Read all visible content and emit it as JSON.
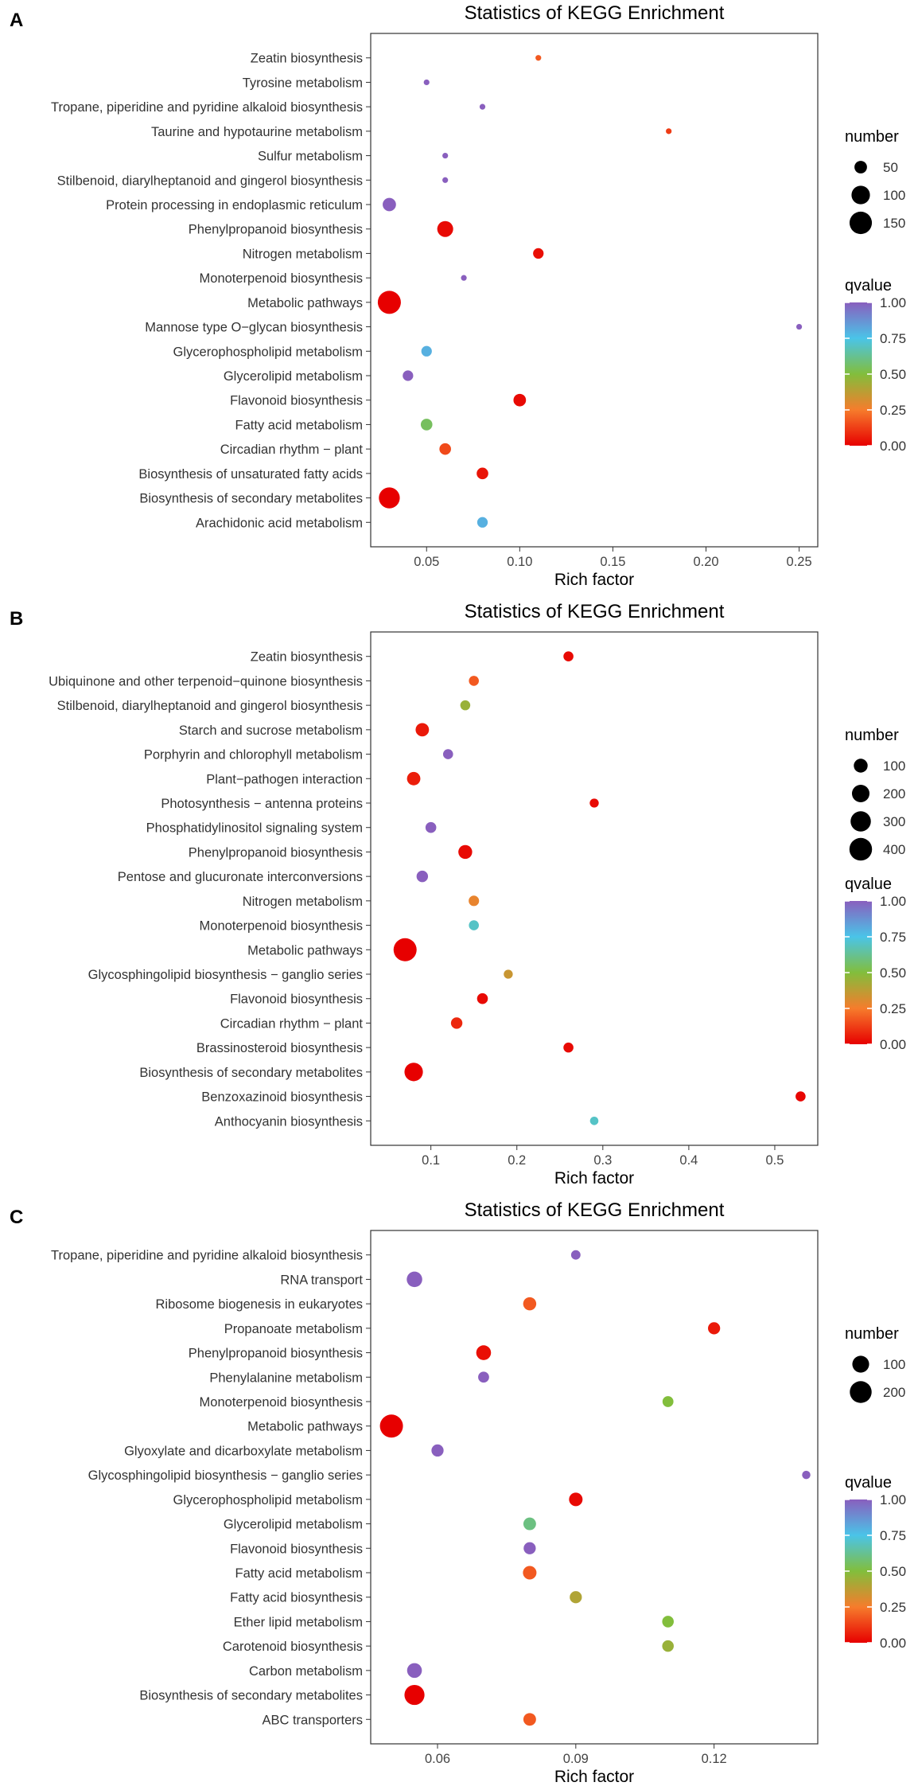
{
  "chart_data": [
    {
      "panel": "A",
      "type": "scatter",
      "title": "Statistics of KEGG Enrichment",
      "xlabel": "Rich factor",
      "ylabel": "",
      "xlim": [
        0.02,
        0.26
      ],
      "xticks": [
        0.05,
        0.1,
        0.15,
        0.2,
        0.25
      ],
      "xtick_labels": [
        "0.05",
        "0.10",
        "0.15",
        "0.20",
        "0.25"
      ],
      "grid": false,
      "legend": {
        "size_title": "number",
        "size_values": [
          50,
          100,
          150
        ],
        "size_labels": [
          "50",
          "100",
          "150"
        ],
        "size_range": [
          30,
          160
        ],
        "color_title": "qvalue",
        "color_ticks": [
          1.0,
          0.75,
          0.5,
          0.25,
          0.0
        ],
        "color_tick_labels": [
          "1.00",
          "0.75",
          "0.50",
          "0.25",
          "0.00"
        ]
      },
      "points": [
        {
          "term": "Zeatin biosynthesis",
          "rich_factor": 0.11,
          "number": 30,
          "qvalue": 0.18
        },
        {
          "term": "Tyrosine metabolism",
          "rich_factor": 0.05,
          "number": 30,
          "qvalue": 1.0
        },
        {
          "term": "Tropane, piperidine and pyridine alkaloid biosynthesis",
          "rich_factor": 0.08,
          "number": 30,
          "qvalue": 1.0
        },
        {
          "term": "Taurine and hypotaurine metabolism",
          "rich_factor": 0.18,
          "number": 30,
          "qvalue": 0.12
        },
        {
          "term": "Sulfur metabolism",
          "rich_factor": 0.06,
          "number": 30,
          "qvalue": 1.0
        },
        {
          "term": "Stilbenoid, diarylheptanoid and gingerol biosynthesis",
          "rich_factor": 0.06,
          "number": 30,
          "qvalue": 1.0
        },
        {
          "term": "Protein processing in endoplasmic reticulum",
          "rich_factor": 0.03,
          "number": 55,
          "qvalue": 1.0
        },
        {
          "term": "Phenylpropanoid biosynthesis",
          "rich_factor": 0.06,
          "number": 75,
          "qvalue": 0.02
        },
        {
          "term": "Nitrogen metabolism",
          "rich_factor": 0.11,
          "number": 40,
          "qvalue": 0.03
        },
        {
          "term": "Monoterpenoid biosynthesis",
          "rich_factor": 0.07,
          "number": 30,
          "qvalue": 1.0
        },
        {
          "term": "Metabolic pathways",
          "rich_factor": 0.03,
          "number": 160,
          "qvalue": 0.0
        },
        {
          "term": "Mannose type O−glycan biosynthesis",
          "rich_factor": 0.25,
          "number": 20,
          "qvalue": 1.0
        },
        {
          "term": "Glycerophospholipid metabolism",
          "rich_factor": 0.05,
          "number": 40,
          "qvalue": 0.8
        },
        {
          "term": "Glycerolipid metabolism",
          "rich_factor": 0.04,
          "number": 40,
          "qvalue": 1.0
        },
        {
          "term": "Flavonoid biosynthesis",
          "rich_factor": 0.1,
          "number": 50,
          "qvalue": 0.02
        },
        {
          "term": "Fatty acid metabolism",
          "rich_factor": 0.05,
          "number": 45,
          "qvalue": 0.55
        },
        {
          "term": "Circadian rhythm − plant",
          "rich_factor": 0.06,
          "number": 45,
          "qvalue": 0.15
        },
        {
          "term": "Biosynthesis of unsaturated fatty acids",
          "rich_factor": 0.08,
          "number": 45,
          "qvalue": 0.04
        },
        {
          "term": "Biosynthesis of secondary metabolites",
          "rich_factor": 0.03,
          "number": 130,
          "qvalue": 0.0
        },
        {
          "term": "Arachidonic acid metabolism",
          "rich_factor": 0.08,
          "number": 40,
          "qvalue": 0.8
        }
      ]
    },
    {
      "panel": "B",
      "type": "scatter",
      "title": "Statistics of KEGG Enrichment",
      "xlabel": "Rich factor",
      "ylabel": "",
      "xlim": [
        0.03,
        0.55
      ],
      "xticks": [
        0.1,
        0.2,
        0.3,
        0.4,
        0.5
      ],
      "xtick_labels": [
        "0.1",
        "0.2",
        "0.3",
        "0.4",
        "0.5"
      ],
      "grid": false,
      "legend": {
        "size_title": "number",
        "size_values": [
          100,
          200,
          300,
          400
        ],
        "size_labels": [
          "100",
          "200",
          "300",
          "400"
        ],
        "size_range": [
          10,
          420
        ],
        "color_title": "qvalue",
        "color_ticks": [
          1.0,
          0.75,
          0.5,
          0.25,
          0.0
        ],
        "color_tick_labels": [
          "1.00",
          "0.75",
          "0.50",
          "0.25",
          "0.00"
        ]
      },
      "points": [
        {
          "term": "Zeatin biosynthesis",
          "rich_factor": 0.26,
          "number": 35,
          "qvalue": 0.02
        },
        {
          "term": "Ubiquinone and other terpenoid−quinone biosynthesis",
          "rich_factor": 0.15,
          "number": 35,
          "qvalue": 0.18
        },
        {
          "term": "Stilbenoid, diarylheptanoid and gingerol biosynthesis",
          "rich_factor": 0.14,
          "number": 35,
          "qvalue": 0.45
        },
        {
          "term": "Starch and sucrose metabolism",
          "rich_factor": 0.09,
          "number": 90,
          "qvalue": 0.05
        },
        {
          "term": "Porphyrin and chlorophyll metabolism",
          "rich_factor": 0.12,
          "number": 35,
          "qvalue": 1.0
        },
        {
          "term": "Plant−pathogen interaction",
          "rich_factor": 0.08,
          "number": 90,
          "qvalue": 0.06
        },
        {
          "term": "Photosynthesis − antenna proteins",
          "rich_factor": 0.29,
          "number": 25,
          "qvalue": 0.02
        },
        {
          "term": "Phosphatidylinositol signaling system",
          "rich_factor": 0.1,
          "number": 45,
          "qvalue": 1.0
        },
        {
          "term": "Phenylpropanoid biosynthesis",
          "rich_factor": 0.14,
          "number": 100,
          "qvalue": 0.02
        },
        {
          "term": "Pentose and glucuronate interconversions",
          "rich_factor": 0.09,
          "number": 55,
          "qvalue": 1.0
        },
        {
          "term": "Nitrogen metabolism",
          "rich_factor": 0.15,
          "number": 40,
          "qvalue": 0.28
        },
        {
          "term": "Monoterpenoid biosynthesis",
          "rich_factor": 0.15,
          "number": 35,
          "qvalue": 0.7
        },
        {
          "term": "Metabolic pathways",
          "rich_factor": 0.07,
          "number": 420,
          "qvalue": 0.0
        },
        {
          "term": "Glycosphingolipid biosynthesis − ganglio series",
          "rich_factor": 0.19,
          "number": 25,
          "qvalue": 0.35
        },
        {
          "term": "Flavonoid biosynthesis",
          "rich_factor": 0.16,
          "number": 45,
          "qvalue": 0.02
        },
        {
          "term": "Circadian rhythm − plant",
          "rich_factor": 0.13,
          "number": 55,
          "qvalue": 0.08
        },
        {
          "term": "Brassinosteroid biosynthesis",
          "rich_factor": 0.26,
          "number": 35,
          "qvalue": 0.02
        },
        {
          "term": "Biosynthesis of secondary metabolites",
          "rich_factor": 0.08,
          "number": 230,
          "qvalue": 0.0
        },
        {
          "term": "Benzoxazinoid biosynthesis",
          "rich_factor": 0.53,
          "number": 35,
          "qvalue": 0.01
        },
        {
          "term": "Anthocyanin biosynthesis",
          "rich_factor": 0.29,
          "number": 20,
          "qvalue": 0.7
        }
      ]
    },
    {
      "panel": "C",
      "type": "scatter",
      "title": "Statistics of KEGG Enrichment",
      "xlabel": "Rich factor",
      "ylabel": "",
      "xlim": [
        0.0455,
        0.1425
      ],
      "xticks": [
        0.06,
        0.09,
        0.12
      ],
      "xtick_labels": [
        "0.06",
        "0.09",
        "0.12"
      ],
      "grid": false,
      "legend": {
        "size_title": "number",
        "size_values": [
          100,
          200
        ],
        "size_labels": [
          "100",
          "200"
        ],
        "size_range": [
          10,
          230
        ],
        "color_title": "qvalue",
        "color_ticks": [
          1.0,
          0.75,
          0.5,
          0.25,
          0.0
        ],
        "color_tick_labels": [
          "1.00",
          "0.75",
          "0.50",
          "0.25",
          "0.00"
        ]
      },
      "points": [
        {
          "term": "Tropane, piperidine and pyridine alkaloid biosynthesis",
          "rich_factor": 0.09,
          "number": 20,
          "qvalue": 1.0
        },
        {
          "term": "RNA transport",
          "rich_factor": 0.055,
          "number": 80,
          "qvalue": 1.0
        },
        {
          "term": "Ribosome biogenesis in eukaryotes",
          "rich_factor": 0.08,
          "number": 50,
          "qvalue": 0.18
        },
        {
          "term": "Propanoate metabolism",
          "rich_factor": 0.12,
          "number": 40,
          "qvalue": 0.05
        },
        {
          "term": "Phenylpropanoid biosynthesis",
          "rich_factor": 0.07,
          "number": 70,
          "qvalue": 0.03
        },
        {
          "term": "Phenylalanine metabolism",
          "rich_factor": 0.07,
          "number": 30,
          "qvalue": 1.0
        },
        {
          "term": "Monoterpenoid biosynthesis",
          "rich_factor": 0.11,
          "number": 30,
          "qvalue": 0.5
        },
        {
          "term": "Metabolic pathways",
          "rich_factor": 0.05,
          "number": 230,
          "qvalue": 0.0
        },
        {
          "term": "Glyoxylate and dicarboxylate metabolism",
          "rich_factor": 0.06,
          "number": 40,
          "qvalue": 1.0
        },
        {
          "term": "Glycosphingolipid biosynthesis − ganglio series",
          "rich_factor": 0.14,
          "number": 15,
          "qvalue": 1.0
        },
        {
          "term": "Glycerophospholipid metabolism",
          "rich_factor": 0.09,
          "number": 55,
          "qvalue": 0.02
        },
        {
          "term": "Glycerolipid metabolism",
          "rich_factor": 0.08,
          "number": 45,
          "qvalue": 0.6
        },
        {
          "term": "Flavonoid biosynthesis",
          "rich_factor": 0.08,
          "number": 40,
          "qvalue": 1.0
        },
        {
          "term": "Fatty acid metabolism",
          "rich_factor": 0.08,
          "number": 55,
          "qvalue": 0.18
        },
        {
          "term": "Fatty acid biosynthesis",
          "rich_factor": 0.09,
          "number": 40,
          "qvalue": 0.4
        },
        {
          "term": "Ether lipid metabolism",
          "rich_factor": 0.11,
          "number": 35,
          "qvalue": 0.5
        },
        {
          "term": "Carotenoid biosynthesis",
          "rich_factor": 0.11,
          "number": 35,
          "qvalue": 0.45
        },
        {
          "term": "Carbon metabolism",
          "rich_factor": 0.055,
          "number": 70,
          "qvalue": 1.0
        },
        {
          "term": "Biosynthesis of secondary metabolites",
          "rich_factor": 0.055,
          "number": 160,
          "qvalue": 0.0
        },
        {
          "term": "ABC transporters",
          "rich_factor": 0.08,
          "number": 45,
          "qvalue": 0.18
        }
      ]
    }
  ]
}
